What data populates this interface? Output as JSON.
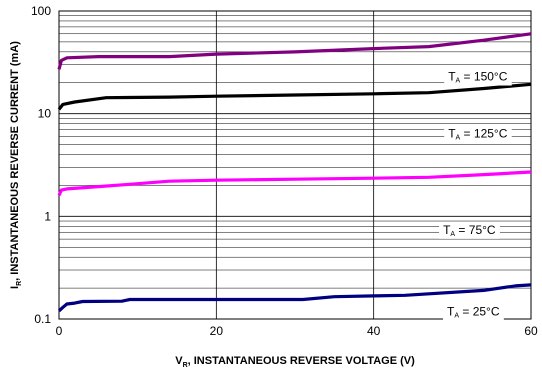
{
  "chart_data": {
    "type": "line",
    "x_axis": {
      "range": [
        0,
        60
      ],
      "ticks": [
        0,
        20,
        40,
        60
      ],
      "tick_labels": [
        "0",
        "20",
        "40",
        "60"
      ],
      "label_main": "V",
      "label_sub": "R",
      "label_rest": ", INSTANTANEOUS REVERSE VOLTAGE (V)",
      "minor_grid": false
    },
    "y_axis": {
      "scale": "log",
      "range": [
        0.1,
        100
      ],
      "ticks": [
        0.1,
        1,
        10,
        100
      ],
      "tick_labels": [
        "0.1",
        "1",
        "10",
        "100"
      ],
      "label_main": "I",
      "label_sub": "R",
      "label_rest": ", INSTANTANEOUS REVERSE CURRENT (mA)",
      "minor_grid": true
    },
    "grid": true,
    "series": [
      {
        "label_main": "T",
        "label_sub": "A",
        "label_rest": " = 150°C",
        "color": "#800080",
        "label_x": 57,
        "label_y": 23,
        "points": [
          [
            0,
            27
          ],
          [
            0.3,
            33
          ],
          [
            1,
            35
          ],
          [
            5,
            36
          ],
          [
            14,
            36
          ],
          [
            20,
            38
          ],
          [
            30,
            40
          ],
          [
            40,
            43
          ],
          [
            47,
            45
          ],
          [
            54,
            52
          ],
          [
            60,
            60
          ]
        ]
      },
      {
        "label_main": "T",
        "label_sub": "A",
        "label_rest": " = 125°C",
        "color": "#000000",
        "label_x": 57,
        "label_y": 6.4,
        "points": [
          [
            0,
            11
          ],
          [
            0.5,
            12.3
          ],
          [
            2,
            13
          ],
          [
            6,
            14.3
          ],
          [
            14,
            14.5
          ],
          [
            20,
            14.8
          ],
          [
            30,
            15.2
          ],
          [
            40,
            15.6
          ],
          [
            47,
            16
          ],
          [
            54,
            17.6
          ],
          [
            60,
            19.3
          ]
        ]
      },
      {
        "label_main": "T",
        "label_sub": "A",
        "label_rest": " = 75°C",
        "color": "#ff00ff",
        "label_x": 55.5,
        "label_y": 0.74,
        "points": [
          [
            0,
            1.6
          ],
          [
            0.3,
            1.8
          ],
          [
            1,
            1.85
          ],
          [
            5,
            1.95
          ],
          [
            9,
            2.05
          ],
          [
            14,
            2.2
          ],
          [
            20,
            2.25
          ],
          [
            30,
            2.3
          ],
          [
            40,
            2.35
          ],
          [
            47,
            2.4
          ],
          [
            54,
            2.55
          ],
          [
            60,
            2.7
          ]
        ]
      },
      {
        "label_main": "T",
        "label_sub": "A",
        "label_rest": " = 25°C",
        "color": "#000080",
        "label_x": 56,
        "label_y": 0.118,
        "points": [
          [
            0,
            0.12
          ],
          [
            0.5,
            0.13
          ],
          [
            1,
            0.14
          ],
          [
            2,
            0.143
          ],
          [
            3,
            0.148
          ],
          [
            8,
            0.149
          ],
          [
            9,
            0.155
          ],
          [
            31,
            0.155
          ],
          [
            35,
            0.165
          ],
          [
            40,
            0.168
          ],
          [
            44,
            0.17
          ],
          [
            54,
            0.19
          ],
          [
            58,
            0.21
          ],
          [
            60,
            0.215
          ]
        ]
      }
    ]
  }
}
